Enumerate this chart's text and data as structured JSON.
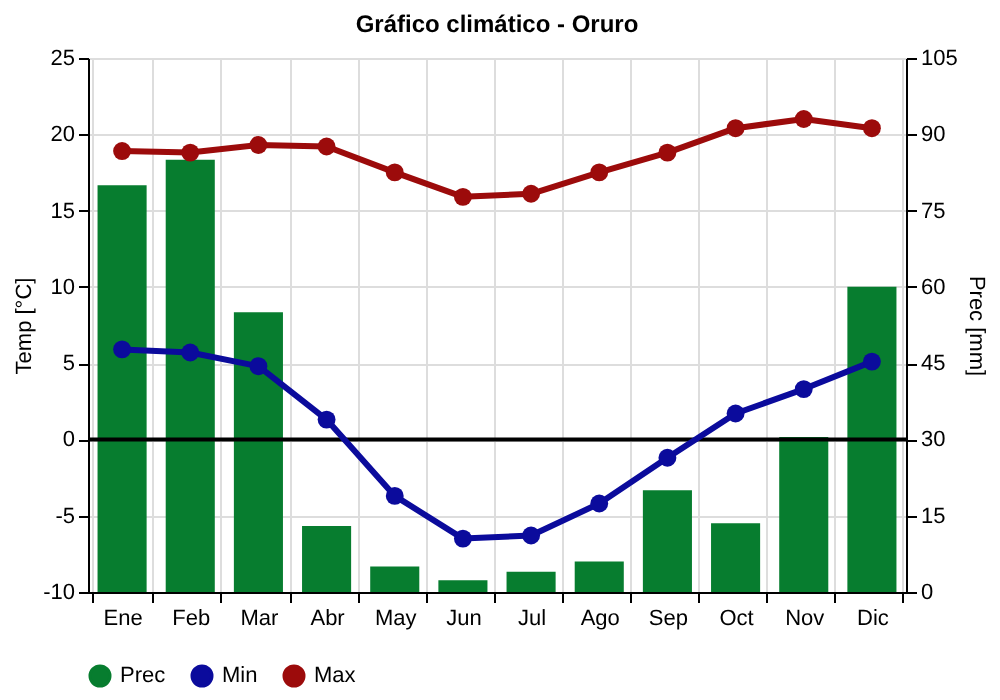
{
  "chart_data": {
    "type": "bar",
    "title": "Gráfico climático - Oruro",
    "ylabel": "Temp [°C]",
    "y2label": "Prec [mm]",
    "categories": [
      "Ene",
      "Feb",
      "Mar",
      "Abr",
      "May",
      "Jun",
      "Jul",
      "Ago",
      "Sep",
      "Oct",
      "Nov",
      "Dic"
    ],
    "series": [
      {
        "name": "Prec",
        "axis": "y2",
        "color": "#077d2f",
        "values": [
          80,
          85,
          55,
          13,
          5,
          2.3,
          4,
          6,
          20,
          13.5,
          30.5,
          60
        ]
      },
      {
        "name": "Min",
        "type": "line",
        "color": "#0b0b9c",
        "values": [
          5.9,
          5.7,
          4.8,
          1.3,
          -3.7,
          -6.5,
          -6.3,
          -4.2,
          -1.2,
          1.7,
          3.3,
          5.1
        ]
      },
      {
        "name": "Max",
        "type": "line",
        "color": "#9c0b0b",
        "values": [
          18.9,
          18.8,
          19.3,
          19.2,
          17.5,
          15.9,
          16.1,
          17.5,
          18.8,
          20.4,
          21.0,
          20.4
        ]
      }
    ],
    "ylim": [
      -10,
      25
    ],
    "yticks": [
      -10,
      -5,
      0,
      5,
      10,
      15,
      20,
      25
    ],
    "y2lim": [
      0,
      105
    ],
    "y2ticks": [
      0,
      15,
      30,
      45,
      60,
      75,
      90,
      105
    ],
    "ref_lines": [
      {
        "axis": "y",
        "value": 0,
        "color": "#000000"
      }
    ],
    "grid": true,
    "legend": "bottom",
    "marker": "circle",
    "line_style": "solid"
  }
}
